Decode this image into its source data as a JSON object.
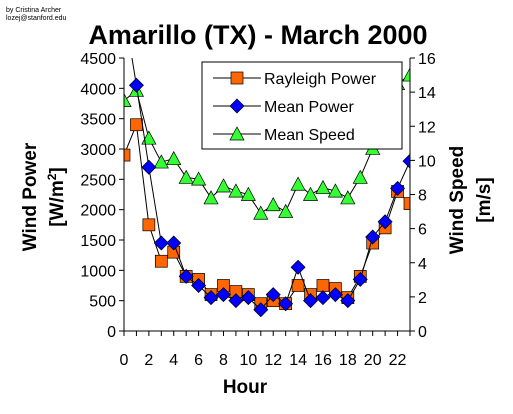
{
  "credit": {
    "line1": "by Cristina Archer",
    "line2": "lozej@stanford.edu"
  },
  "chart_data": {
    "type": "line",
    "title": "Amarillo (TX) - March 2000",
    "xlabel": "Hour",
    "ylabel_left": "Wind Power [W/m²]",
    "ylabel_left_main": "Wind Power",
    "ylabel_left_unit_base": "[W/m",
    "ylabel_left_unit_sup": "2",
    "ylabel_left_unit_close": "]",
    "ylabel_right": "Wind Speed [m/s]",
    "ylabel_right_main": "Wind Speed",
    "ylabel_right_unit": "[m/s]",
    "xlim": [
      0,
      23
    ],
    "ylim_left": [
      0,
      4500
    ],
    "ylim_right": [
      0,
      16
    ],
    "x_ticks": [
      0,
      2,
      4,
      6,
      8,
      10,
      12,
      14,
      16,
      18,
      20,
      22
    ],
    "y_left_ticks": [
      0,
      500,
      1000,
      1500,
      2000,
      2500,
      3000,
      3500,
      4000,
      4500
    ],
    "y_right_ticks": [
      0,
      2,
      4,
      6,
      8,
      10,
      12,
      14,
      16
    ],
    "grid": false,
    "legend_position": "top-right",
    "x": [
      0,
      1,
      2,
      3,
      4,
      5,
      6,
      7,
      8,
      9,
      10,
      11,
      12,
      13,
      14,
      15,
      16,
      17,
      18,
      19,
      20,
      21,
      22,
      23
    ],
    "series": [
      {
        "name": "Rayleigh Power",
        "axis": "left",
        "marker": "square",
        "color": "#ff6600",
        "values": [
          2900,
          3400,
          1750,
          1150,
          1300,
          900,
          850,
          600,
          750,
          650,
          600,
          450,
          500,
          450,
          750,
          600,
          750,
          700,
          550,
          900,
          1450,
          1700,
          2300,
          2100
        ]
      },
      {
        "name": "Mean Power",
        "axis": "left",
        "marker": "diamond",
        "color": "#0000ff",
        "values": [
          5300,
          4050,
          2700,
          1450,
          1450,
          900,
          750,
          550,
          600,
          500,
          550,
          350,
          600,
          450,
          1050,
          500,
          550,
          600,
          500,
          850,
          1550,
          1800,
          2350,
          2800
        ]
      },
      {
        "name": "Mean Speed",
        "axis": "right",
        "marker": "triangle",
        "color": "#33ff33",
        "values": [
          13.5,
          14.1,
          11.3,
          9.9,
          10.1,
          9.0,
          8.9,
          7.8,
          8.5,
          8.2,
          8.0,
          6.9,
          7.4,
          7.0,
          8.6,
          8.0,
          8.4,
          8.2,
          7.8,
          9.0,
          10.7,
          12.8,
          14.5,
          15.0
        ]
      }
    ]
  }
}
